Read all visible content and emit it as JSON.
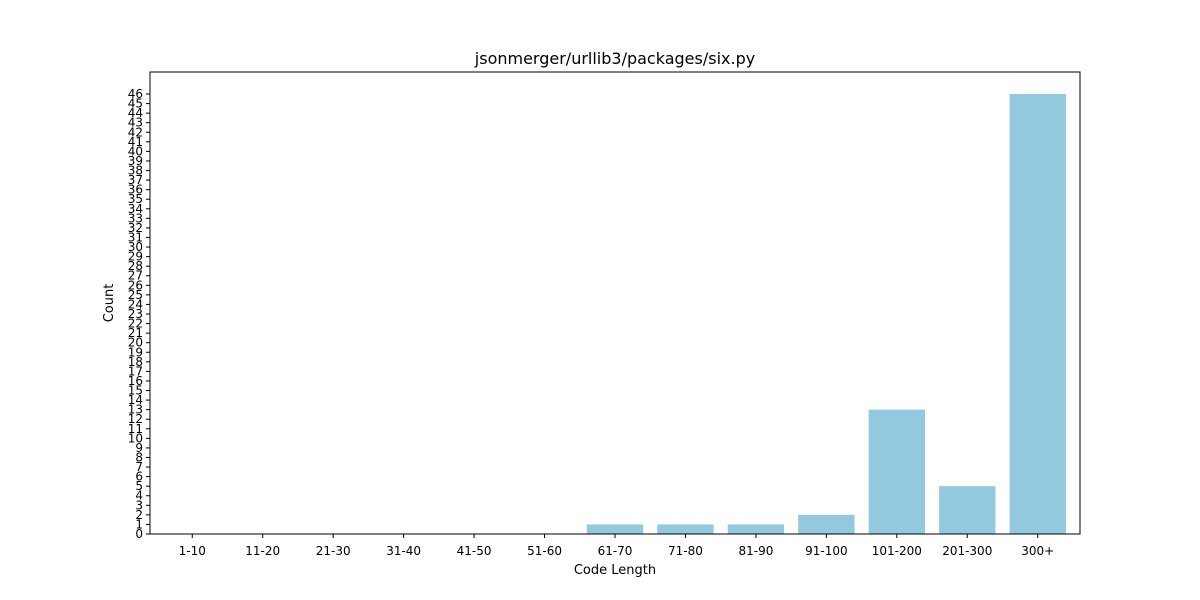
{
  "chart_data": {
    "type": "bar",
    "title": "jsonmerger/urllib3/packages/six.py",
    "xlabel": "Code Length",
    "ylabel": "Count",
    "categories": [
      "1-10",
      "11-20",
      "21-30",
      "31-40",
      "41-50",
      "51-60",
      "61-70",
      "71-80",
      "81-90",
      "91-100",
      "101-200",
      "201-300",
      "300+"
    ],
    "values": [
      0,
      0,
      0,
      0,
      0,
      0,
      1,
      1,
      1,
      2,
      13,
      5,
      46
    ],
    "ylim": [
      0,
      48.3
    ],
    "yticks": [
      0,
      1,
      2,
      3,
      4,
      5,
      6,
      7,
      8,
      9,
      10,
      11,
      12,
      13,
      14,
      15,
      16,
      17,
      18,
      19,
      20,
      21,
      22,
      23,
      24,
      25,
      26,
      27,
      28,
      29,
      30,
      31,
      32,
      33,
      34,
      35,
      36,
      37,
      38,
      39,
      40,
      41,
      42,
      43,
      44,
      45,
      46
    ],
    "bar_color": "#92c9df",
    "grid": false,
    "legend": false
  }
}
